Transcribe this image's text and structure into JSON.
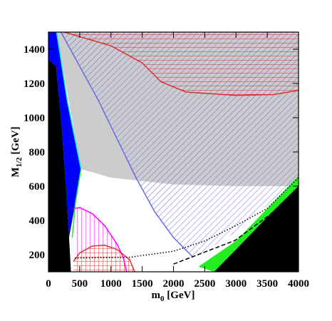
{
  "chart_data": {
    "type": "region",
    "xlabel": {
      "text": "m",
      "sub": "0",
      "rest": " [GeV]"
    },
    "ylabel": {
      "text": "M",
      "sub": "1/2",
      "rest": " [GeV]"
    },
    "xlim": [
      0,
      4000
    ],
    "ylim": [
      100,
      1500
    ],
    "xticks": [
      0,
      500,
      1000,
      1500,
      2000,
      2500,
      3000,
      3500,
      4000
    ],
    "yticks": [
      200,
      400,
      600,
      800,
      1000,
      1200,
      1400
    ],
    "regions": [
      {
        "style": "solid",
        "color": "#cccccc",
        "x": [
          130,
          4000,
          4000,
          3000,
          2000,
          1000,
          520
        ],
        "y": [
          1500,
          1500,
          600,
          600,
          610,
          650,
          700
        ]
      },
      {
        "style": "hatch-diag",
        "color": "#6a6ae0",
        "x": [
          200,
          4000,
          4000,
          3000,
          2500,
          2300,
          2000,
          1700,
          1400,
          800
        ],
        "y": [
          1500,
          1500,
          650,
          330,
          220,
          190,
          300,
          450,
          650,
          1100
        ]
      },
      {
        "style": "hatch-h",
        "color": "#e03030",
        "x": [
          250,
          4000,
          4000,
          3600,
          3000,
          2200,
          1800,
          1500,
          1000
        ],
        "y": [
          1500,
          1500,
          1160,
          1135,
          1130,
          1150,
          1210,
          1320,
          1420
        ]
      },
      {
        "style": "hatch-v",
        "color": "#ff00ff",
        "x": [
          400,
          500,
          700,
          900,
          1100,
          1200,
          1250,
          400
        ],
        "y": [
          470,
          475,
          440,
          370,
          260,
          180,
          100,
          100
        ]
      },
      {
        "style": "hatch-cross",
        "color": "#e03030",
        "x": [
          400,
          500,
          700,
          900,
          1100,
          1300,
          1380,
          400
        ],
        "y": [
          160,
          210,
          250,
          255,
          230,
          170,
          100,
          100
        ]
      },
      {
        "style": "solid",
        "color": "#0000ff",
        "x": [
          0,
          130,
          300,
          520,
          430,
          330,
          280,
          200,
          120,
          0
        ],
        "y": [
          1500,
          1500,
          1100,
          700,
          500,
          300,
          600,
          1000,
          1300,
          1340
        ]
      },
      {
        "style": "solid",
        "color": "#000000",
        "x": [
          0,
          0,
          120,
          200,
          280,
          330,
          360
        ],
        "y": [
          100,
          1340,
          1300,
          1000,
          600,
          300,
          100
        ]
      },
      {
        "style": "solid",
        "color": "#22ee22",
        "x": [
          2400,
          3000,
          3500,
          4000,
          4000,
          3500,
          3000,
          2650
        ],
        "y": [
          130,
          280,
          470,
          660,
          600,
          420,
          230,
          100
        ]
      },
      {
        "style": "solid",
        "color": "#000000",
        "x": [
          2650,
          3000,
          3500,
          4000,
          4000
        ],
        "y": [
          100,
          230,
          420,
          600,
          100
        ]
      }
    ],
    "curves": [
      {
        "color": "#00e5ff",
        "dash": "solid",
        "x": [
          130,
          300,
          520
        ],
        "y": [
          1500,
          1100,
          700
        ]
      },
      {
        "color": "#22ee22",
        "dash": "solid",
        "x": [
          520,
          430,
          380
        ],
        "y": [
          700,
          500,
          300
        ]
      },
      {
        "color": "#6a6ae0",
        "dash": "solid",
        "x": [
          200,
          800,
          1400,
          1700,
          2000,
          2300
        ],
        "y": [
          1500,
          1100,
          650,
          450,
          300,
          190
        ]
      },
      {
        "color": "#e03030",
        "dash": "solid",
        "x": [
          250,
          1000,
          1500,
          1800,
          2200,
          3000,
          3600,
          4000
        ],
        "y": [
          1500,
          1420,
          1320,
          1210,
          1150,
          1130,
          1135,
          1160
        ]
      },
      {
        "color": "#ff00ff",
        "dash": "solid",
        "x": [
          400,
          500,
          700,
          900,
          1100,
          1200,
          1250
        ],
        "y": [
          470,
          475,
          440,
          370,
          260,
          180,
          100
        ]
      },
      {
        "color": "#e03030",
        "dash": "solid",
        "x": [
          400,
          500,
          700,
          900,
          1100,
          1300,
          1380
        ],
        "y": [
          160,
          210,
          250,
          255,
          230,
          170,
          100
        ]
      },
      {
        "color": "#000000",
        "dash": "dotted",
        "x": [
          420,
          1300,
          2000,
          2500,
          3000,
          3500,
          4000
        ],
        "y": [
          180,
          185,
          220,
          280,
          370,
          470,
          650
        ]
      },
      {
        "color": "#000000",
        "dash": "dashed",
        "x": [
          2000,
          2985,
          3555,
          4000
        ],
        "y": [
          145,
          283,
          437,
          596
        ]
      }
    ]
  }
}
